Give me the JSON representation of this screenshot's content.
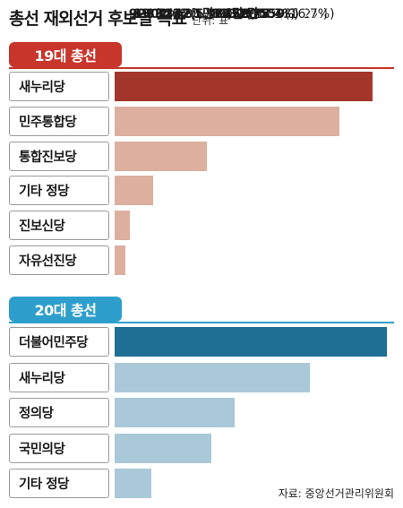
{
  "title": "총선 재외선거 후보별 득표",
  "unit": "단위: 표",
  "source": "자료: 중앙선거관리위원회",
  "colors": {
    "s19_badge": "#c8352b",
    "s19_rule": "#c8352b",
    "s19_top": "#a3362a",
    "s19_bar": "#dcaf9f",
    "s20_badge": "#2e9fcc",
    "s20_rule": "#2e9fcc",
    "s20_top": "#1d6f93",
    "s20_bar": "#a9c8d8"
  },
  "chart_data": [
    {
      "type": "bar",
      "orientation": "horizontal",
      "title": "19대 총선",
      "categories": [
        "새누리당",
        "민주통합당",
        "통합진보당",
        "기타 정당",
        "진보신당",
        "자유선진당"
      ],
      "values": [
        22646,
        19757,
        8132,
        3342,
        1302,
        923
      ],
      "value_labels": [
        "2만2646",
        "1만9757",
        "8132",
        "3342",
        "1302",
        "923"
      ],
      "percent_labels": [
        "(40.4%)",
        "(35.2%)",
        "(14.5%)",
        "(6.0%)",
        "(2.3%)",
        "(1.6%)"
      ]
    },
    {
      "type": "bar",
      "orientation": "horizontal",
      "title": "20대 총선",
      "categories": [
        "더불어민주당",
        "새누리당",
        "정의당",
        "국민의당",
        "기타 정당"
      ],
      "values": [
        23936,
        17172,
        10559,
        8456,
        3212
      ],
      "value_labels": [
        "2만3936",
        "1만7172",
        "1만559",
        "8456",
        "3212"
      ],
      "percent_labels": [
        "(37.8%)",
        "(27.1%)",
        "(16.7%)",
        "(13.4%)",
        "(5.1%)"
      ]
    }
  ]
}
